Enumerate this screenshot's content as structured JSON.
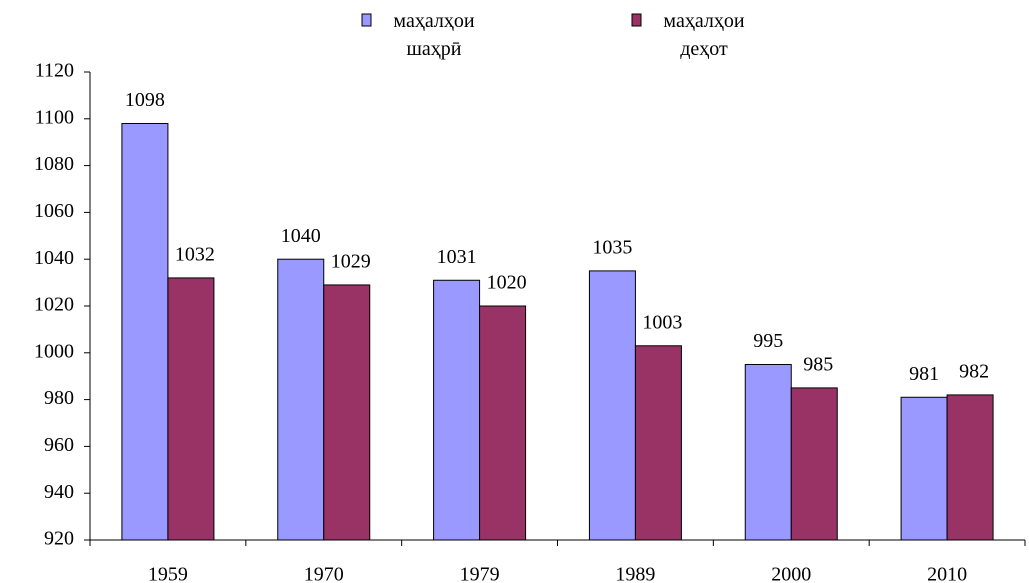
{
  "chart_data": {
    "type": "bar",
    "categories": [
      "1959",
      "1970",
      "1979",
      "1989",
      "2000",
      "2010"
    ],
    "series": [
      {
        "name": "маҳалҳои шаҳрӣ",
        "color": "#9999ff",
        "values": [
          1098,
          1040,
          1031,
          1035,
          995,
          981
        ]
      },
      {
        "name": "маҳалҳои деҳот",
        "color": "#993366",
        "values": [
          1032,
          1029,
          1020,
          1003,
          985,
          982
        ]
      }
    ],
    "ylim": [
      920,
      1120
    ],
    "yticks": [
      920,
      940,
      960,
      980,
      1000,
      1020,
      1040,
      1060,
      1080,
      1100,
      1120
    ],
    "legend": "top"
  }
}
